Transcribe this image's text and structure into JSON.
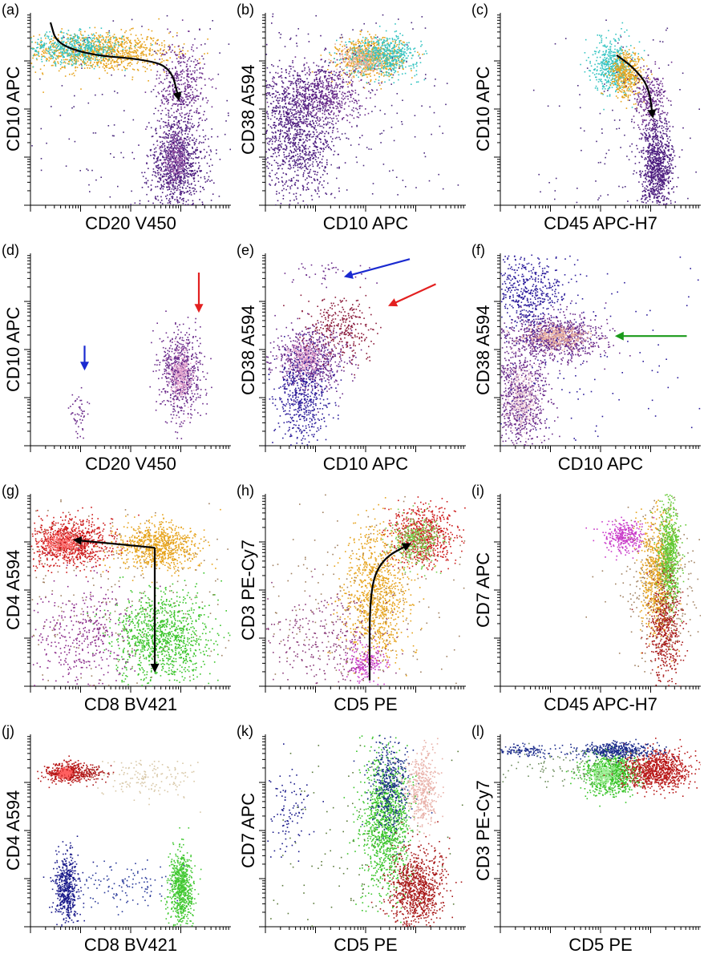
{
  "chart_data": [
    {
      "id": "a",
      "type": "scatter",
      "panel_label": "(a)",
      "xlabel": "CD20 V450",
      "ylabel": "CD10 APC",
      "xlim": [
        0,
        1
      ],
      "ylim": [
        0,
        1
      ],
      "scale": "log",
      "clusters": [
        {
          "x": 0.34,
          "y": 0.8,
          "sx": 0.18,
          "sy": 0.05,
          "color": "#e6a21a",
          "n": 1000
        },
        {
          "x": 0.22,
          "y": 0.82,
          "sx": 0.12,
          "sy": 0.04,
          "color": "#35c4c2",
          "n": 500
        },
        {
          "x": 0.75,
          "y": 0.62,
          "sx": 0.06,
          "sy": 0.12,
          "color": "#6a2a8a",
          "n": 420
        },
        {
          "x": 0.73,
          "y": 0.22,
          "sx": 0.07,
          "sy": 0.12,
          "color": "#4b1b7e",
          "n": 1000
        },
        {
          "x": 0.72,
          "y": 0.24,
          "sx": 0.03,
          "sy": 0.06,
          "color": "#9a5aa8",
          "n": 200
        },
        {
          "x": 0.5,
          "y": 0.4,
          "sx": 0.4,
          "sy": 0.4,
          "color": "#4b2a7e",
          "n": 200
        }
      ],
      "arrows": [
        {
          "color": "#000000",
          "points": [
            [
              0.1,
              0.95
            ],
            [
              0.13,
              0.84
            ],
            [
              0.3,
              0.78
            ],
            [
              0.55,
              0.76
            ],
            [
              0.7,
              0.72
            ],
            [
              0.74,
              0.55
            ]
          ]
        }
      ]
    },
    {
      "id": "b",
      "type": "scatter",
      "panel_label": "(b)",
      "xlabel": "CD10 APC",
      "ylabel": "CD38 A594",
      "xlim": [
        0,
        1
      ],
      "ylim": [
        0,
        1
      ],
      "scale": "log",
      "clusters": [
        {
          "x": 0.52,
          "y": 0.77,
          "sx": 0.08,
          "sy": 0.05,
          "color": "#e6a21a",
          "n": 700
        },
        {
          "x": 0.58,
          "y": 0.78,
          "sx": 0.09,
          "sy": 0.05,
          "color": "#35c4c2",
          "n": 600
        },
        {
          "x": 0.47,
          "y": 0.76,
          "sx": 0.05,
          "sy": 0.04,
          "color": "#e8b0a0",
          "n": 200
        },
        {
          "x": 0.28,
          "y": 0.58,
          "sx": 0.1,
          "sy": 0.08,
          "color": "#6a2a8a",
          "n": 600
        },
        {
          "x": 0.15,
          "y": 0.38,
          "sx": 0.1,
          "sy": 0.18,
          "color": "#4b1b7e",
          "n": 1200
        },
        {
          "x": 0.4,
          "y": 0.5,
          "sx": 0.35,
          "sy": 0.35,
          "color": "#4b2a7e",
          "n": 250
        }
      ],
      "arrows": []
    },
    {
      "id": "c",
      "type": "scatter",
      "panel_label": "(c)",
      "xlabel": "CD45 APC-H7",
      "ylabel": "CD10 APC",
      "xlim": [
        0,
        1
      ],
      "ylim": [
        0,
        1
      ],
      "scale": "log",
      "clusters": [
        {
          "x": 0.56,
          "y": 0.73,
          "sx": 0.05,
          "sy": 0.07,
          "color": "#35c4c2",
          "n": 500
        },
        {
          "x": 0.63,
          "y": 0.68,
          "sx": 0.04,
          "sy": 0.06,
          "color": "#e6a21a",
          "n": 400
        },
        {
          "x": 0.74,
          "y": 0.55,
          "sx": 0.04,
          "sy": 0.08,
          "color": "#6a2a8a",
          "n": 300
        },
        {
          "x": 0.78,
          "y": 0.2,
          "sx": 0.04,
          "sy": 0.12,
          "color": "#4b1b7e",
          "n": 900
        },
        {
          "x": 0.6,
          "y": 0.35,
          "sx": 0.2,
          "sy": 0.3,
          "color": "#4b2a7e",
          "n": 120
        }
      ],
      "arrows": [
        {
          "color": "#000000",
          "points": [
            [
              0.58,
              0.78
            ],
            [
              0.66,
              0.72
            ],
            [
              0.74,
              0.62
            ],
            [
              0.76,
              0.46
            ]
          ]
        }
      ]
    },
    {
      "id": "d",
      "type": "scatter",
      "panel_label": "(d)",
      "xlabel": "CD20 V450",
      "ylabel": "CD10 APC",
      "xlim": [
        0,
        1
      ],
      "ylim": [
        0,
        1
      ],
      "scale": "log",
      "clusters": [
        {
          "x": 0.75,
          "y": 0.38,
          "sx": 0.05,
          "sy": 0.11,
          "color": "#6a2a8a",
          "n": 700
        },
        {
          "x": 0.75,
          "y": 0.37,
          "sx": 0.025,
          "sy": 0.06,
          "color": "#e6a8d0",
          "n": 250
        },
        {
          "x": 0.24,
          "y": 0.18,
          "sx": 0.02,
          "sy": 0.06,
          "color": "#6a2a8a",
          "n": 50
        }
      ],
      "arrows": [
        {
          "color": "#e32020",
          "points": [
            [
              0.84,
              0.9
            ],
            [
              0.84,
              0.7
            ]
          ]
        },
        {
          "color": "#1a2ad0",
          "points": [
            [
              0.27,
              0.52
            ],
            [
              0.27,
              0.4
            ]
          ]
        }
      ]
    },
    {
      "id": "e",
      "type": "scatter",
      "panel_label": "(e)",
      "xlabel": "CD10 APC",
      "ylabel": "CD38 A594",
      "xlim": [
        0,
        1
      ],
      "ylim": [
        0,
        1
      ],
      "scale": "log",
      "clusters": [
        {
          "x": 0.22,
          "y": 0.45,
          "sx": 0.09,
          "sy": 0.08,
          "color": "#6a2a8a",
          "n": 700
        },
        {
          "x": 0.2,
          "y": 0.46,
          "sx": 0.04,
          "sy": 0.04,
          "color": "#e6a8d0",
          "n": 250
        },
        {
          "x": 0.18,
          "y": 0.25,
          "sx": 0.07,
          "sy": 0.12,
          "color": "#2a1a9a",
          "n": 500
        },
        {
          "x": 0.38,
          "y": 0.62,
          "sx": 0.08,
          "sy": 0.08,
          "color": "#8a1a3a",
          "n": 300
        },
        {
          "x": 0.3,
          "y": 0.9,
          "sx": 0.12,
          "sy": 0.03,
          "color": "#6a2a8a",
          "n": 40
        }
      ],
      "arrows": [
        {
          "color": "#1a2ad0",
          "points": [
            [
              0.72,
              0.97
            ],
            [
              0.4,
              0.88
            ]
          ]
        },
        {
          "color": "#e32020",
          "points": [
            [
              0.85,
              0.84
            ],
            [
              0.62,
              0.73
            ]
          ]
        }
      ]
    },
    {
      "id": "f",
      "type": "scatter",
      "panel_label": "(f)",
      "xlabel": "CD10 APC",
      "ylabel": "CD38 A594",
      "xlim": [
        0,
        1
      ],
      "ylim": [
        0,
        1
      ],
      "scale": "log",
      "clusters": [
        {
          "x": 0.27,
          "y": 0.56,
          "sx": 0.12,
          "sy": 0.06,
          "color": "#6a2a8a",
          "n": 900
        },
        {
          "x": 0.28,
          "y": 0.57,
          "sx": 0.07,
          "sy": 0.03,
          "color": "#e8b0a0",
          "n": 350
        },
        {
          "x": 0.1,
          "y": 0.25,
          "sx": 0.07,
          "sy": 0.14,
          "color": "#6a2a8a",
          "n": 800
        },
        {
          "x": 0.1,
          "y": 0.25,
          "sx": 0.04,
          "sy": 0.08,
          "color": "#f0d0d8",
          "n": 300
        },
        {
          "x": 0.12,
          "y": 0.8,
          "sx": 0.1,
          "sy": 0.1,
          "color": "#2a1a9a",
          "n": 500
        },
        {
          "x": 0.3,
          "y": 0.5,
          "sx": 0.35,
          "sy": 0.4,
          "color": "#2a1a9a",
          "n": 200
        }
      ],
      "arrows": [
        {
          "color": "#1a9a1a",
          "points": [
            [
              0.93,
              0.57
            ],
            [
              0.58,
              0.57
            ]
          ]
        }
      ]
    },
    {
      "id": "g",
      "type": "scatter",
      "panel_label": "(g)",
      "xlabel": "CD8 BV421",
      "ylabel": "CD4 A594",
      "xlim": [
        0,
        1
      ],
      "ylim": [
        0,
        1
      ],
      "scale": "log",
      "clusters": [
        {
          "x": 0.2,
          "y": 0.75,
          "sx": 0.1,
          "sy": 0.06,
          "color": "#cc1818",
          "n": 900
        },
        {
          "x": 0.16,
          "y": 0.75,
          "sx": 0.05,
          "sy": 0.03,
          "color": "#ff7070",
          "n": 250
        },
        {
          "x": 0.63,
          "y": 0.73,
          "sx": 0.1,
          "sy": 0.06,
          "color": "#e6a21a",
          "n": 800
        },
        {
          "x": 0.65,
          "y": 0.25,
          "sx": 0.12,
          "sy": 0.12,
          "color": "#38c428",
          "n": 1100
        },
        {
          "x": 0.25,
          "y": 0.25,
          "sx": 0.12,
          "sy": 0.15,
          "color": "#8a2a8a",
          "n": 400
        },
        {
          "x": 0.4,
          "y": 0.45,
          "sx": 0.3,
          "sy": 0.3,
          "color": "#a08060",
          "n": 250
        }
      ],
      "arrows": [
        {
          "color": "#000000",
          "points": [
            [
              0.62,
              0.72
            ],
            [
              0.22,
              0.76
            ]
          ]
        },
        {
          "color": "#000000",
          "points": [
            [
              0.62,
              0.72
            ],
            [
              0.62,
              0.08
            ]
          ]
        }
      ]
    },
    {
      "id": "h",
      "type": "scatter",
      "panel_label": "(h)",
      "xlabel": "CD5 PE",
      "ylabel": "CD3 PE-Cy7",
      "xlim": [
        0,
        1
      ],
      "ylim": [
        0,
        1
      ],
      "scale": "log",
      "clusters": [
        {
          "x": 0.78,
          "y": 0.78,
          "sx": 0.08,
          "sy": 0.08,
          "color": "#cc1818",
          "n": 700
        },
        {
          "x": 0.75,
          "y": 0.76,
          "sx": 0.06,
          "sy": 0.06,
          "color": "#78d050",
          "n": 350
        },
        {
          "x": 0.55,
          "y": 0.48,
          "sx": 0.08,
          "sy": 0.17,
          "color": "#e6a21a",
          "n": 1000
        },
        {
          "x": 0.5,
          "y": 0.12,
          "sx": 0.05,
          "sy": 0.05,
          "color": "#c838c8",
          "n": 200
        },
        {
          "x": 0.3,
          "y": 0.25,
          "sx": 0.15,
          "sy": 0.12,
          "color": "#8a3a7a",
          "n": 300
        },
        {
          "x": 0.4,
          "y": 0.45,
          "sx": 0.35,
          "sy": 0.35,
          "color": "#a08060",
          "n": 250
        }
      ],
      "arrows": [
        {
          "color": "#000000",
          "points": [
            [
              0.52,
              0.03
            ],
            [
              0.52,
              0.5
            ],
            [
              0.58,
              0.66
            ],
            [
              0.72,
              0.74
            ]
          ]
        }
      ]
    },
    {
      "id": "i",
      "type": "scatter",
      "panel_label": "(i)",
      "xlabel": "CD45 APC-H7",
      "ylabel": "CD7 APC",
      "xlim": [
        0,
        1
      ],
      "ylim": [
        0,
        1
      ],
      "scale": "log",
      "clusters": [
        {
          "x": 0.62,
          "y": 0.78,
          "sx": 0.05,
          "sy": 0.04,
          "color": "#c838c8",
          "n": 300
        },
        {
          "x": 0.78,
          "y": 0.58,
          "sx": 0.04,
          "sy": 0.16,
          "color": "#e6a21a",
          "n": 700
        },
        {
          "x": 0.84,
          "y": 0.68,
          "sx": 0.025,
          "sy": 0.14,
          "color": "#60c830",
          "n": 700
        },
        {
          "x": 0.82,
          "y": 0.3,
          "sx": 0.04,
          "sy": 0.14,
          "color": "#a81818",
          "n": 500
        },
        {
          "x": 0.8,
          "y": 0.55,
          "sx": 0.1,
          "sy": 0.2,
          "color": "#a08060",
          "n": 300
        }
      ],
      "arrows": []
    },
    {
      "id": "j",
      "type": "scatter",
      "panel_label": "(j)",
      "xlabel": "CD8 BV421",
      "ylabel": "CD4 A594",
      "xlim": [
        0,
        1
      ],
      "ylim": [
        0,
        1
      ],
      "scale": "log",
      "clusters": [
        {
          "x": 0.18,
          "y": 0.8,
          "sx": 0.05,
          "sy": 0.025,
          "color": "#b81818",
          "n": 450
        },
        {
          "x": 0.17,
          "y": 0.8,
          "sx": 0.02,
          "sy": 0.012,
          "color": "#ff6060",
          "n": 150
        },
        {
          "x": 0.31,
          "y": 0.8,
          "sx": 0.04,
          "sy": 0.02,
          "color": "#a81818",
          "n": 80
        },
        {
          "x": 0.6,
          "y": 0.76,
          "sx": 0.12,
          "sy": 0.05,
          "color": "#d8c8a8",
          "n": 150
        },
        {
          "x": 0.18,
          "y": 0.2,
          "sx": 0.03,
          "sy": 0.09,
          "color": "#1a1a8a",
          "n": 500
        },
        {
          "x": 0.75,
          "y": 0.2,
          "sx": 0.03,
          "sy": 0.1,
          "color": "#40c830",
          "n": 700
        },
        {
          "x": 0.45,
          "y": 0.22,
          "sx": 0.14,
          "sy": 0.06,
          "color": "#2a3a9a",
          "n": 120
        }
      ],
      "arrows": []
    },
    {
      "id": "k",
      "type": "scatter",
      "panel_label": "(k)",
      "xlabel": "CD5 PE",
      "ylabel": "CD7 APC",
      "xlim": [
        0,
        1
      ],
      "ylim": [
        0,
        1
      ],
      "scale": "log",
      "clusters": [
        {
          "x": 0.6,
          "y": 0.55,
          "sx": 0.06,
          "sy": 0.18,
          "color": "#38c428",
          "n": 1200
        },
        {
          "x": 0.62,
          "y": 0.75,
          "sx": 0.05,
          "sy": 0.12,
          "color": "#1a2a8a",
          "n": 400
        },
        {
          "x": 0.75,
          "y": 0.2,
          "sx": 0.07,
          "sy": 0.1,
          "color": "#a81818",
          "n": 900
        },
        {
          "x": 0.78,
          "y": 0.72,
          "sx": 0.04,
          "sy": 0.1,
          "color": "#e8b0a8",
          "n": 400
        },
        {
          "x": 0.12,
          "y": 0.6,
          "sx": 0.06,
          "sy": 0.12,
          "color": "#1a1a8a",
          "n": 100
        },
        {
          "x": 0.4,
          "y": 0.4,
          "sx": 0.3,
          "sy": 0.3,
          "color": "#5a7a3a",
          "n": 120
        }
      ],
      "arrows": []
    },
    {
      "id": "l",
      "type": "scatter",
      "panel_label": "(l)",
      "xlabel": "CD5 PE",
      "ylabel": "CD3 PE-Cy7",
      "xlim": [
        0,
        1
      ],
      "ylim": [
        0,
        1
      ],
      "scale": "log",
      "clusters": [
        {
          "x": 0.55,
          "y": 0.8,
          "sx": 0.07,
          "sy": 0.05,
          "color": "#38c428",
          "n": 900
        },
        {
          "x": 0.52,
          "y": 0.8,
          "sx": 0.03,
          "sy": 0.025,
          "color": "#a8f0a0",
          "n": 250
        },
        {
          "x": 0.78,
          "y": 0.82,
          "sx": 0.08,
          "sy": 0.05,
          "color": "#b81818",
          "n": 900
        },
        {
          "x": 0.58,
          "y": 0.92,
          "sx": 0.1,
          "sy": 0.02,
          "color": "#1a2a8a",
          "n": 400
        },
        {
          "x": 0.12,
          "y": 0.92,
          "sx": 0.07,
          "sy": 0.015,
          "color": "#1a2a8a",
          "n": 120
        },
        {
          "x": 0.35,
          "y": 0.82,
          "sx": 0.2,
          "sy": 0.05,
          "color": "#6a8a5a",
          "n": 100
        }
      ],
      "arrows": []
    }
  ]
}
